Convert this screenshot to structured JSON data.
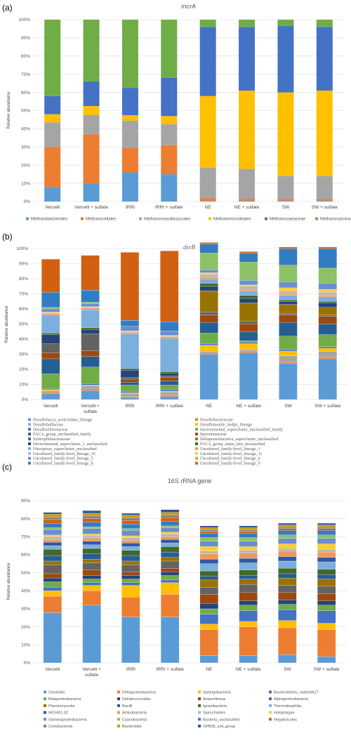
{
  "figure": {
    "panels": [
      {
        "label": "(a)",
        "title": "mcrA"
      },
      {
        "label": "(b)",
        "title": "dsrB"
      },
      {
        "label": "(c)",
        "title": "16S rRNA gene"
      }
    ],
    "ylabel": "Relative abundance"
  },
  "chart_data": [
    {
      "panel": "(a)",
      "type": "bar",
      "stacked": true,
      "title": "mcrA",
      "ylabel": "Relative abundance",
      "ylim": [
        0,
        100
      ],
      "yticks": [
        "0%",
        "10%",
        "20%",
        "30%",
        "40%",
        "50%",
        "60%",
        "70%",
        "80%",
        "90%",
        "100%"
      ],
      "grid": true,
      "legend": "bottom",
      "categories": [
        "Vercelli",
        "Vercelli + sulfate",
        "IRRI",
        "IRRI + sulfate",
        "NE",
        "NE + sulfate",
        "SW",
        "SW + sulfate"
      ],
      "series": [
        {
          "name": "Methanobacteriales",
          "color": "#5b9bd5",
          "values": [
            8,
            10,
            16,
            15,
            0.5,
            0.5,
            0.5,
            0.5
          ]
        },
        {
          "name": "Methanocellales",
          "color": "#ed7d31",
          "values": [
            22,
            27,
            13.5,
            16,
            1.5,
            1,
            1,
            1
          ]
        },
        {
          "name": "Methanomassiliicoccales",
          "color": "#a5a5a5",
          "values": [
            13.5,
            10.5,
            15,
            11.5,
            16.5,
            16.5,
            12.5,
            12.5
          ]
        },
        {
          "name": "Methanomicrobiales",
          "color": "#ffc000",
          "values": [
            4.5,
            5,
            3,
            4.5,
            39.5,
            43,
            46,
            47
          ]
        },
        {
          "name": "Methanosaetaceae",
          "color": "#4472c4",
          "values": [
            10,
            13.5,
            15,
            21,
            38,
            35,
            36.5,
            35
          ]
        },
        {
          "name": "Methanosarcinaceae",
          "color": "#70ad47",
          "values": [
            42,
            34,
            37.5,
            32,
            4,
            4,
            3.5,
            4
          ]
        }
      ]
    },
    {
      "panel": "(b)",
      "type": "bar",
      "stacked": true,
      "title": "dsrB",
      "ylabel": "Relative abundance",
      "ylim": [
        0,
        100
      ],
      "yticks": [
        "0%",
        "10%",
        "20%",
        "30%",
        "40%",
        "50%",
        "60%",
        "70%",
        "80%",
        "90%",
        "100%"
      ],
      "grid": true,
      "legend": "bottom",
      "categories": [
        "Vercelli",
        "Vercelli + sulfate",
        "IRRI",
        "IRRI + sulfate",
        "NE",
        "NE + sulfate",
        "SW",
        "SW + sulfate"
      ],
      "series": [
        {
          "name": "Desulfobacca_acetoxidans_lineage",
          "color": "#5b9bd5",
          "values": [
            4,
            6,
            1,
            2,
            30,
            31,
            24,
            27
          ]
        },
        {
          "name": "Desulfobacteraceae",
          "color": "#ed7d31",
          "values": [
            1,
            1,
            1,
            1,
            1,
            1,
            1,
            1
          ]
        },
        {
          "name": "Desulfobulbaceae",
          "color": "#a5a5a5",
          "values": [
            1,
            2,
            2,
            2,
            1,
            1,
            4,
            4
          ]
        },
        {
          "name": "Desulfomonile_tiedjei_lineage",
          "color": "#ffc000",
          "values": [
            0.5,
            0.5,
            0.5,
            0.5,
            4,
            4,
            3,
            2
          ]
        },
        {
          "name": "Desulfovibrionaceae",
          "color": "#4472c4",
          "values": [
            0.5,
            1,
            1,
            1,
            1,
            1,
            1,
            1
          ]
        },
        {
          "name": "Environmental_supercluster_unclassified_family",
          "color": "#70ad47",
          "values": [
            10,
            11,
            4,
            3,
            7,
            1,
            9,
            8
          ]
        },
        {
          "name": "FACA_group_unclassified_family",
          "color": "#255e91",
          "values": [
            10,
            7,
            2,
            3,
            7,
            6,
            9,
            7
          ]
        },
        {
          "name": "Sporomusaceae",
          "color": "#9e480e",
          "values": [
            4,
            4,
            2,
            2,
            5,
            5,
            5,
            5
          ]
        },
        {
          "name": "Syntrophobacteraceae",
          "color": "#636363",
          "values": [
            6,
            11,
            1,
            1,
            2,
            2,
            1,
            1
          ]
        },
        {
          "name": "Deltaproteobacteria_supercluster_unclassified",
          "color": "#997300",
          "values": [
            0,
            0,
            0,
            0,
            14,
            12,
            6,
            5
          ]
        },
        {
          "name": "Environmental_supercluster_1_unclassified",
          "color": "#264478",
          "values": [
            6,
            3,
            5,
            2,
            3,
            3,
            2,
            3
          ]
        },
        {
          "name": "FACA_group_sensu_lato_unclassified",
          "color": "#43682b",
          "values": [
            1,
            1,
            1,
            1,
            2,
            2,
            1,
            1
          ]
        },
        {
          "name": "Nitrospirae_supercluster_unclassified",
          "color": "#7cafdd",
          "values": [
            12,
            12,
            23,
            22,
            3,
            3,
            3,
            3
          ]
        },
        {
          "name": "Uncultured_family-level_lineage_1",
          "color": "#f1975a",
          "values": [
            1,
            1,
            1,
            1,
            1,
            1,
            1,
            1
          ]
        },
        {
          "name": "Uncultured_family-level_lineage_10",
          "color": "#b7b7b7",
          "values": [
            0.5,
            0.5,
            0.5,
            0.5,
            2,
            2,
            2,
            2
          ]
        },
        {
          "name": "Uncultured_family-level_lineage_11",
          "color": "#ffcd33",
          "values": [
            0.5,
            0.5,
            0.5,
            0.5,
            1,
            1,
            2,
            2
          ]
        },
        {
          "name": "Uncultured_family-level_lineage_5",
          "color": "#698ed0",
          "values": [
            2,
            2,
            3,
            3,
            2,
            3,
            4,
            4
          ]
        },
        {
          "name": "Uncultured_family-level_lineage_6",
          "color": "#8cc168",
          "values": [
            1,
            1,
            0,
            0,
            11,
            12,
            11,
            10
          ]
        },
        {
          "name": "Uncultured_family-level_lineage_8",
          "color": "#327dc2",
          "values": [
            10,
            8,
            4,
            6,
            6,
            6,
            11,
            13
          ]
        },
        {
          "name": "Uncultured_family-level_lineage_9",
          "color": "#d26012",
          "values": [
            22,
            23,
            45,
            47,
            1,
            1,
            1,
            1
          ]
        }
      ]
    },
    {
      "panel": "(c)",
      "type": "bar",
      "stacked": true,
      "title": "16S rRNA gene",
      "ylabel": "Relative abundance",
      "ylim": [
        0,
        90
      ],
      "yticks": [
        "0%",
        "10%",
        "20%",
        "30%",
        "40%",
        "50%",
        "60%",
        "70%",
        "80%",
        "90%"
      ],
      "grid": true,
      "legend": "bottom",
      "categories": [
        "Vercelli",
        "Vercelli + sulfate",
        "IRRI",
        "IRRI + sulfate",
        "NE",
        "NE + sulfate",
        "SW",
        "SW + sulfate"
      ],
      "series": [
        {
          "name": "Clostridia",
          "color": "#5b9bd5",
          "values": [
            28,
            32,
            25.5,
            25.5,
            4,
            4,
            4.5,
            3.5
          ]
        },
        {
          "name": "Deltaproteobacteria",
          "color": "#ed7d31",
          "values": [
            9,
            8,
            11,
            12.5,
            14.5,
            16,
            15,
            15
          ]
        },
        {
          "name": "Sphingobacteria",
          "color": "#ffc000",
          "values": [
            3,
            3,
            6.5,
            6.5,
            3,
            3,
            4,
            3.5
          ]
        },
        {
          "name": "Bacteroidetes_vadinHA17",
          "color": "#4472c4",
          "values": [
            2,
            1.5,
            1.5,
            1.5,
            5.5,
            6,
            6,
            7
          ]
        },
        {
          "name": "Betaproteobacteria",
          "color": "#70ad47",
          "values": [
            3,
            2,
            2,
            2.5,
            3,
            3,
            3,
            3
          ]
        },
        {
          "name": "Dehalococcoidia",
          "color": "#264478",
          "values": [
            2,
            2,
            2,
            2,
            3,
            2.5,
            2.5,
            2.5
          ]
        },
        {
          "name": "Anaerolineae",
          "color": "#9e480e",
          "values": [
            2.5,
            3,
            2,
            2,
            5,
            4.5,
            4,
            4
          ]
        },
        {
          "name": "Alphaproteobacteria",
          "color": "#636363",
          "values": [
            5,
            4,
            4,
            4,
            4,
            4.5,
            4,
            4
          ]
        },
        {
          "name": "Planctomycetia",
          "color": "#997300",
          "values": [
            2,
            2,
            2,
            2,
            4,
            3,
            4,
            4
          ]
        },
        {
          "name": "Bacilli",
          "color": "#255e91",
          "values": [
            3,
            3,
            3,
            3,
            2,
            2,
            2.5,
            2.5
          ]
        },
        {
          "name": "Ignavibacteria",
          "color": "#43682b",
          "values": [
            3.5,
            3,
            3,
            3,
            3,
            3,
            3,
            3
          ]
        },
        {
          "name": "Thermoleophilia",
          "color": "#7cafdd",
          "values": [
            2,
            2,
            2,
            2,
            4,
            4,
            4,
            4
          ]
        },
        {
          "name": "WCHB1-32",
          "color": "#335aa1",
          "values": [
            2,
            2,
            2,
            2,
            2.5,
            2.5,
            2.5,
            2.5
          ]
        },
        {
          "name": "Actinobacteria",
          "color": "#f1975a",
          "values": [
            1.5,
            1.5,
            1.5,
            1.5,
            3,
            3,
            3,
            3
          ]
        },
        {
          "name": "Spirochaetes",
          "color": "#b7b7b7",
          "values": [
            1.5,
            1.5,
            1.5,
            1.5,
            1.5,
            1.5,
            1.5,
            1.5
          ]
        },
        {
          "name": "Holophagae",
          "color": "#ffcd33",
          "values": [
            1,
            1,
            1,
            1,
            2.5,
            2,
            2.5,
            3
          ]
        },
        {
          "name": "Gammaproteobacteria",
          "color": "#698ed0",
          "values": [
            3,
            3,
            3,
            2.5,
            3,
            3,
            3,
            3
          ]
        },
        {
          "name": "Cyanobacteria",
          "color": "#8cc168",
          "values": [
            1,
            1,
            1,
            1,
            2,
            2,
            2,
            2
          ]
        },
        {
          "name": "Bacteria_unclassified",
          "color": "#327dc2",
          "values": [
            2.5,
            2.5,
            2.5,
            2.5,
            2.5,
            2.5,
            2.5,
            2.5
          ]
        },
        {
          "name": "Negativicutes",
          "color": "#d26012",
          "values": [
            2,
            2,
            2,
            2,
            1,
            1,
            1,
            1
          ]
        },
        {
          "name": "Coriobacteriia",
          "color": "#848484",
          "values": [
            1.5,
            1.5,
            1.5,
            1.5,
            1,
            1,
            1,
            1
          ]
        },
        {
          "name": "Bacteroidia",
          "color": "#cc9a00",
          "values": [
            1.5,
            1.5,
            1.5,
            1.5,
            1,
            1,
            1,
            1
          ]
        },
        {
          "name": "OPB35_soil_group",
          "color": "#2f5597",
          "values": [
            1,
            1.5,
            1,
            1.5,
            1,
            1,
            1,
            1
          ]
        }
      ]
    }
  ]
}
